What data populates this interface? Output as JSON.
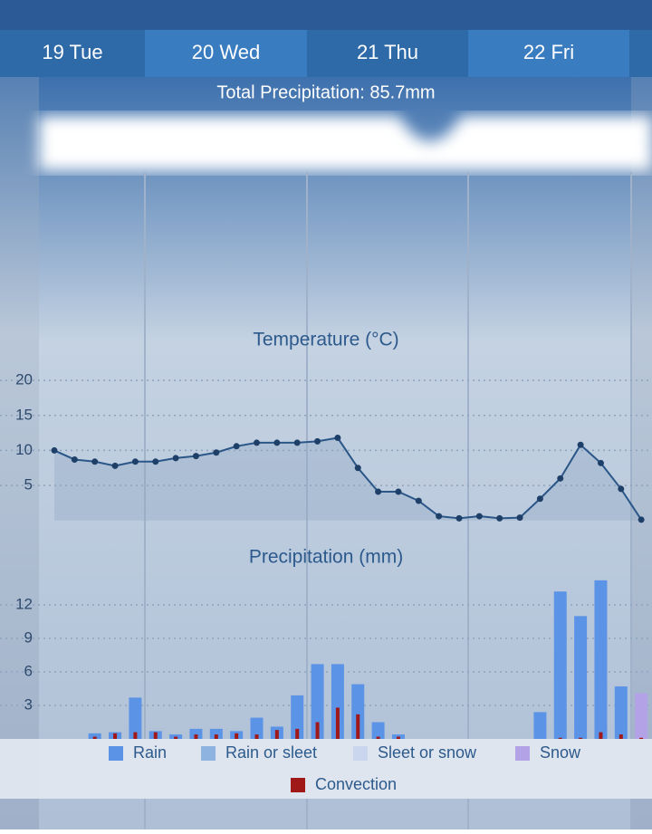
{
  "tabs": [
    "19 Tue",
    "20 Wed",
    "21 Thu",
    "22 Fri"
  ],
  "total_precipitation": "Total Precipitation: 85.7mm",
  "chart_data": [
    {
      "type": "line",
      "title": "Temperature (°C)",
      "series": [
        {
          "name": "Temperature",
          "color": "#2a5688",
          "values": [
            10,
            8.7,
            8.4,
            7.8,
            8.4,
            8.4,
            8.9,
            9.2,
            9.7,
            10.6,
            11.1,
            11.1,
            11.1,
            11.3,
            11.8,
            7.5,
            4.1,
            4.1,
            2.8,
            0.6,
            0.3,
            0.6,
            0.3,
            0.4,
            3.1,
            6.0,
            10.8,
            8.2,
            4.5,
            0.1
          ]
        }
      ],
      "ylim": [
        0,
        22
      ],
      "yticks": [
        5,
        10,
        15,
        20
      ],
      "grid": true
    },
    {
      "type": "bar",
      "title": "Precipitation (mm)",
      "series": [
        {
          "name": "Rain",
          "color": "#5b93e6",
          "values": [
            0,
            0,
            0.5,
            0.6,
            3.7,
            0.7,
            0.4,
            0.9,
            0.9,
            0.7,
            1.9,
            1.1,
            3.9,
            6.7,
            6.7,
            4.9,
            1.5,
            0.4,
            0,
            0,
            0,
            0,
            0,
            0,
            2.4,
            13.2,
            11.0,
            14.2,
            4.7,
            0
          ]
        },
        {
          "name": "Rain or sleet",
          "color": "#8fb3e0",
          "values": [
            0,
            0,
            0,
            0,
            0,
            0,
            0,
            0,
            0,
            0,
            0,
            0,
            0,
            0,
            0,
            0,
            0,
            0,
            0,
            0,
            0,
            0,
            0,
            0,
            0,
            0,
            0,
            0,
            0,
            0
          ]
        },
        {
          "name": "Sleet or snow",
          "color": "#c9d6ee",
          "values": [
            0,
            0,
            0,
            0,
            0,
            0,
            0,
            0,
            0,
            0,
            0,
            0,
            0,
            0,
            0,
            0,
            0,
            0,
            0,
            0,
            0,
            0,
            0,
            0,
            0,
            0,
            0,
            0,
            0,
            0
          ]
        },
        {
          "name": "Snow",
          "color": "#b3a2e6",
          "values": [
            0,
            0,
            0,
            0,
            0,
            0,
            0,
            0,
            0,
            0,
            0,
            0,
            0,
            0,
            0,
            0,
            0,
            0,
            0,
            0,
            0,
            0,
            0,
            0,
            0,
            0,
            0,
            0,
            0,
            4.1
          ]
        },
        {
          "name": "Convection",
          "color": "#a01818",
          "values": [
            0,
            0,
            0.2,
            0.5,
            0.6,
            0.6,
            0.2,
            0.4,
            0.4,
            0.5,
            0.4,
            0.8,
            0.9,
            1.5,
            2.8,
            2.2,
            0.2,
            0.2,
            0,
            0,
            0,
            0,
            0,
            0,
            0,
            0.1,
            0.1,
            0.6,
            0.4,
            0.1
          ]
        }
      ],
      "ylim": [
        0,
        15
      ],
      "yticks": [
        3,
        6,
        9,
        12
      ],
      "grid": true
    }
  ]
}
